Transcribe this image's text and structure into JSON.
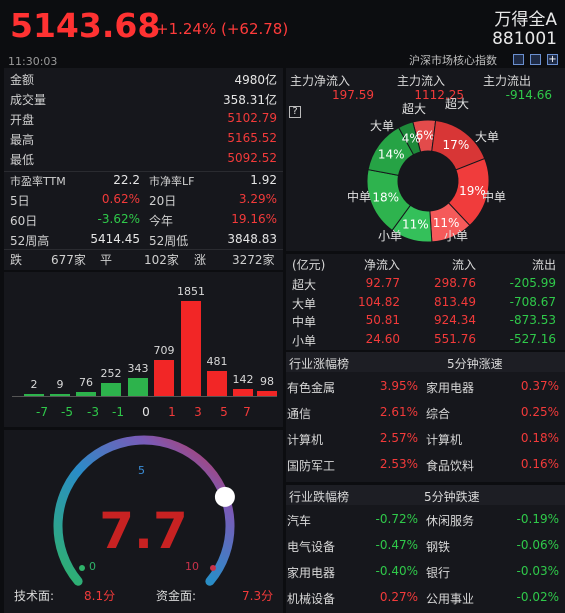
{
  "header": {
    "price": "5143.68",
    "change": "+1.24% (+62.78)",
    "index_name": "万得全A",
    "index_code": "881001",
    "index_sub": "沪深市场核心指数",
    "time": "11:30:03"
  },
  "stats": {
    "rows": [
      {
        "label": "金额",
        "value": "4980亿",
        "color": "white"
      },
      {
        "label": "成交量",
        "value": "358.31亿",
        "color": "white"
      },
      {
        "label": "开盘",
        "value": "5102.79",
        "color": "red"
      },
      {
        "label": "最高",
        "value": "5165.52",
        "color": "red"
      },
      {
        "label": "最低",
        "value": "5092.52",
        "color": "red"
      }
    ],
    "pe_label": "市盈率TTM",
    "pe_value": "22.2",
    "pb_label": "市净率LF",
    "pb_value": "1.92",
    "d5_label": "5日",
    "d5_value": "0.62%",
    "d20_label": "20日",
    "d20_value": "3.29%",
    "d60_label": "60日",
    "d60_value": "-3.62%",
    "ytd_label": "今年",
    "ytd_value": "19.16%",
    "hi52_label": "52周高",
    "hi52_value": "5414.45",
    "lo52_label": "52周低",
    "lo52_value": "3848.83",
    "down_label": "跌",
    "down_value": "677家",
    "flat_label": "平",
    "flat_value": "102家",
    "up_label": "涨",
    "up_value": "3272家"
  },
  "distribution": {
    "categories": [
      "-7",
      "-5",
      "-3",
      "-1",
      "0",
      "1",
      "3",
      "5",
      "7"
    ],
    "values": [
      2,
      9,
      76,
      252,
      343,
      709,
      1851,
      481,
      142,
      98
    ],
    "labels": [
      "2",
      "9",
      "76",
      "252",
      "343",
      "709",
      "1851",
      "481",
      "142",
      "98"
    ],
    "colors": [
      "green",
      "green",
      "green",
      "green",
      "green",
      "red",
      "red",
      "red",
      "red",
      "red"
    ]
  },
  "gauge": {
    "value": "7.7",
    "min_label": "0",
    "mid_label": "5",
    "max_label": "10",
    "tech_label": "技术面:",
    "tech_value": "8.1分",
    "fund_label": "资金面:",
    "fund_value": "7.3分",
    "level": 0.77
  },
  "flow": {
    "h1": "主力净流入",
    "v1": "197.59",
    "h2": "主力流入",
    "v2": "1112.25",
    "h3": "主力流出",
    "v3": "-914.66",
    "help": "?"
  },
  "donut": {
    "slices": [
      {
        "label": "超大",
        "pct": "6%",
        "value": 6,
        "color": "#e34b4b"
      },
      {
        "label": "大单",
        "pct": "17%",
        "value": 17,
        "color": "#d83636"
      },
      {
        "label": "中单",
        "pct": "19%",
        "value": 19,
        "color": "#f03c3c"
      },
      {
        "label": "小单",
        "pct": "11%",
        "value": 11,
        "color": "#f55a5a"
      },
      {
        "label": "小单",
        "pct": "11%",
        "value": 11,
        "color": "#34c05a"
      },
      {
        "label": "中单",
        "pct": "18%",
        "value": 18,
        "color": "#2eb34e"
      },
      {
        "label": "大单",
        "pct": "14%",
        "value": 14,
        "color": "#26a345"
      },
      {
        "label": "超大",
        "pct": "4%",
        "value": 4,
        "color": "#1e8a3a"
      }
    ]
  },
  "flow_table": {
    "headers": [
      "(亿元)",
      "净流入",
      "流入",
      "流出"
    ],
    "rows": [
      [
        "超大",
        "92.77",
        "298.76",
        "-205.99"
      ],
      [
        "大单",
        "104.82",
        "813.49",
        "-708.67"
      ],
      [
        "中单",
        "50.81",
        "924.34",
        "-873.53"
      ],
      [
        "小单",
        "24.60",
        "551.76",
        "-527.16"
      ]
    ]
  },
  "rise": {
    "title": "行业涨幅榜",
    "title2": "5分钟涨速",
    "rows": [
      [
        "有色金属",
        "3.95%",
        "家用电器",
        "0.37%"
      ],
      [
        "通信",
        "2.61%",
        "综合",
        "0.25%"
      ],
      [
        "计算机",
        "2.57%",
        "计算机",
        "0.18%"
      ],
      [
        "国防军工",
        "2.53%",
        "食品饮料",
        "0.16%"
      ]
    ]
  },
  "fall": {
    "title": "行业跌幅榜",
    "title2": "5分钟跌速",
    "rows": [
      [
        "汽车",
        "-0.72%",
        "休闲服务",
        "-0.19%"
      ],
      [
        "电气设备",
        "-0.47%",
        "钢铁",
        "-0.06%"
      ],
      [
        "家用电器",
        "-0.40%",
        "银行",
        "-0.03%"
      ],
      [
        "机械设备",
        "0.27%",
        "公用事业",
        "-0.02%"
      ]
    ]
  }
}
